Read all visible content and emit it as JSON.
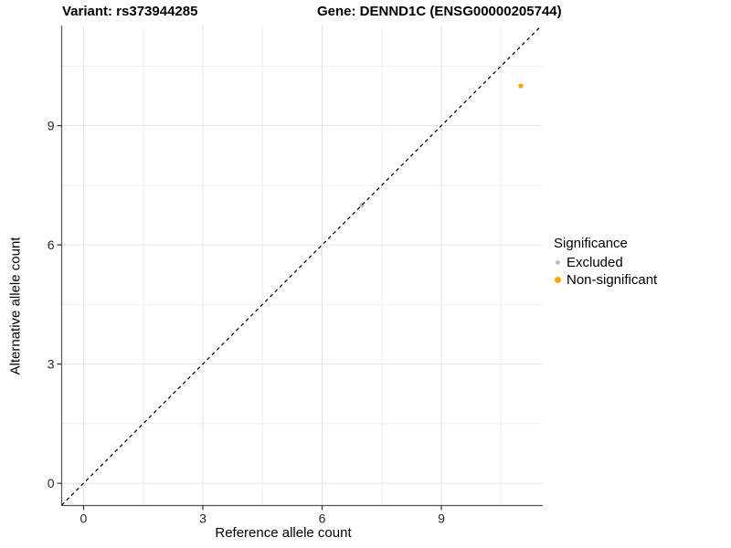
{
  "chart_data": {
    "type": "scatter",
    "title_left": "Variant: rs373944285",
    "title_right": "Gene: DENND1C (ENSG00000205744)",
    "xlabel": "Reference allele count",
    "ylabel": "Alternative allele count",
    "x_ticks": [
      0,
      3,
      6,
      9
    ],
    "y_ticks": [
      0,
      3,
      6,
      9
    ],
    "xlim": [
      -0.55,
      11.55
    ],
    "ylim": [
      -0.56,
      11.52
    ],
    "grid": true,
    "identity_line": {
      "style": "dashed",
      "color": "#000000"
    },
    "points": [
      {
        "x": 7,
        "y": 7,
        "series": "Excluded"
      },
      {
        "x": 11,
        "y": 10,
        "series": "Non-significant"
      }
    ],
    "legend": {
      "title": "Significance",
      "position": "right",
      "entries": [
        {
          "label": "Excluded",
          "color": "#BEBEBE"
        },
        {
          "label": "Non-significant",
          "color": "#FFA500"
        }
      ]
    },
    "colors": {
      "axis_line": "#555555",
      "tick_text": "#262626",
      "grid_major": "#E4E4E4",
      "grid_minor": "#EFEFEF"
    }
  }
}
